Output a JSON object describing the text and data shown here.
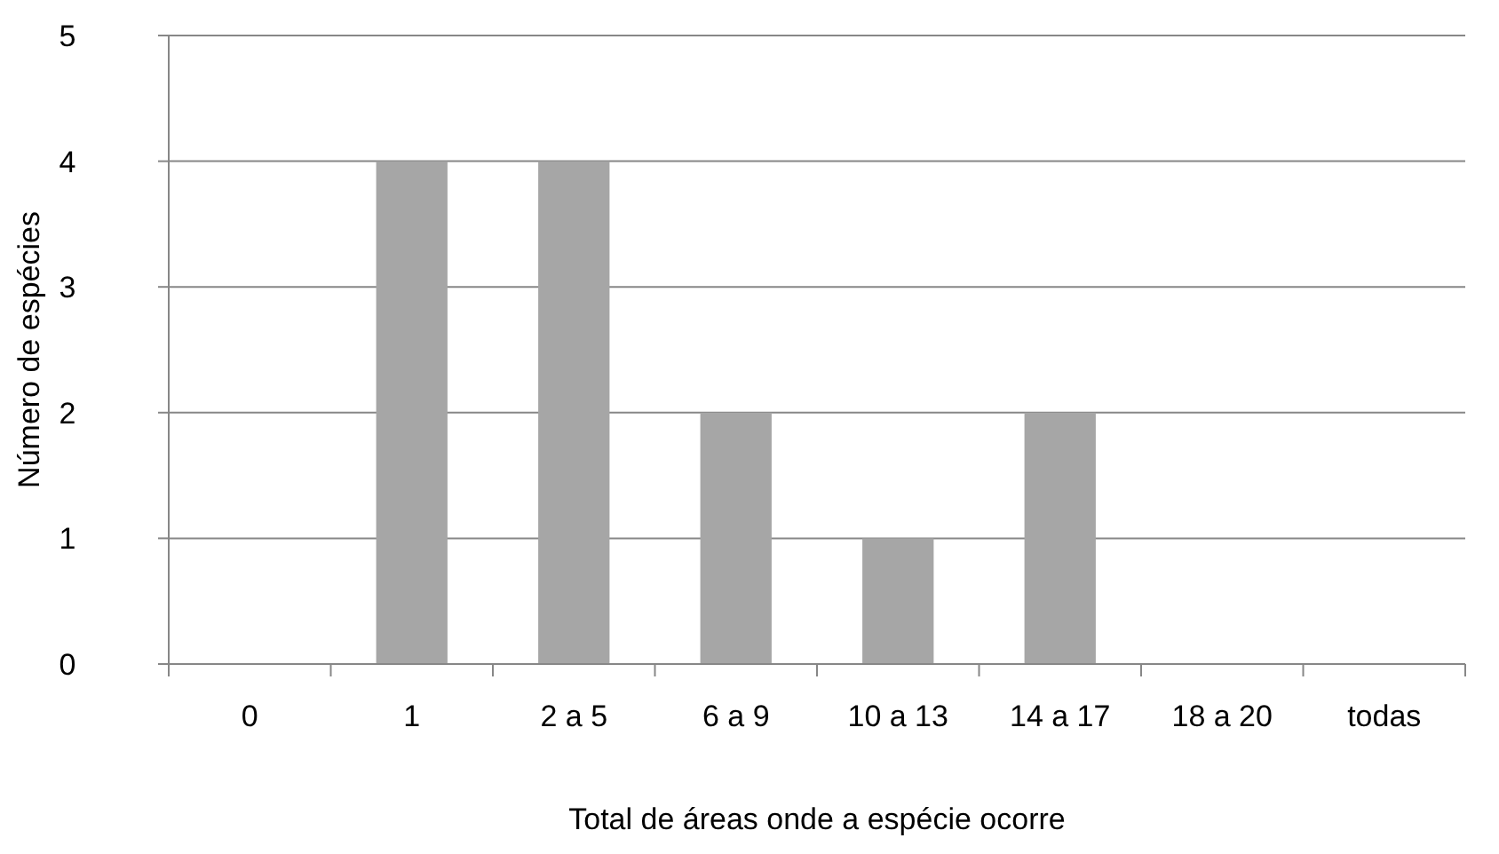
{
  "chart_data": {
    "type": "bar",
    "xlabel": "Total de áreas onde a espécie ocorre",
    "ylabel": "Número de espécies",
    "categories": [
      "0",
      "1",
      "2 a 5",
      "6 a 9",
      "10 a 13",
      "14 a 17",
      "18 a 20",
      "todas"
    ],
    "values": [
      0,
      4,
      4,
      2,
      1,
      2,
      0,
      0
    ],
    "color": "#a6a6a6",
    "ylim": [
      0,
      5
    ],
    "yticks": [
      0,
      1,
      2,
      3,
      4,
      5
    ],
    "grid": "y"
  }
}
